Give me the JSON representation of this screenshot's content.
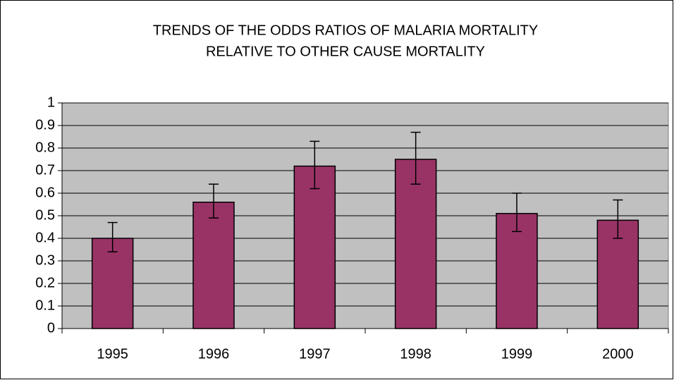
{
  "chart_data": {
    "type": "bar",
    "title": [
      "TRENDS OF THE ODDS RATIOS OF MALARIA MORTALITY",
      "RELATIVE TO OTHER CAUSE MORTALITY"
    ],
    "categories": [
      "1995",
      "1996",
      "1997",
      "1998",
      "1999",
      "2000"
    ],
    "values": [
      0.4,
      0.56,
      0.72,
      0.75,
      0.51,
      0.48
    ],
    "lower": [
      0.34,
      0.49,
      0.62,
      0.64,
      0.43,
      0.4
    ],
    "upper": [
      0.47,
      0.64,
      0.83,
      0.87,
      0.6,
      0.57
    ],
    "color": "#993366",
    "ylim": [
      0,
      1
    ],
    "yticks": [
      0,
      0.1,
      0.2,
      0.3,
      0.4,
      0.5,
      0.6,
      0.7,
      0.8,
      0.9,
      1
    ],
    "grid": true
  }
}
